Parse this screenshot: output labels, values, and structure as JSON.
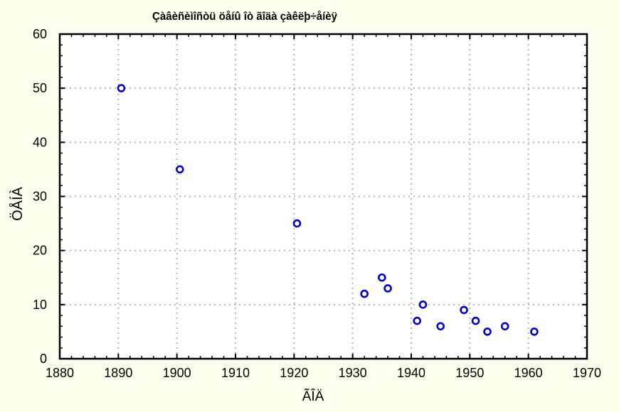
{
  "colors": {
    "background": "#fffff0",
    "plot_background": "#ffffff",
    "frame": "#000000",
    "grid": "#b4b4b4",
    "marker": "#0000d0"
  },
  "chart_data": {
    "type": "scatter",
    "title": "Çàâèñèìîñòü öåíû îò ãîäà çàêëþ÷åíèÿ",
    "xlabel": "ÃÎÄ",
    "ylabel": "ÖÅÍÀ",
    "xlim": [
      1880,
      1970
    ],
    "ylim": [
      0,
      60
    ],
    "x_ticks": [
      1880,
      1890,
      1900,
      1910,
      1920,
      1930,
      1940,
      1950,
      1960,
      1970
    ],
    "y_ticks": [
      0,
      10,
      20,
      30,
      40,
      50,
      60
    ],
    "grid": true,
    "marker": "open-circle",
    "series": [
      {
        "points": [
          {
            "x": 1890.5,
            "y": 50
          },
          {
            "x": 1900.5,
            "y": 35
          },
          {
            "x": 1920.5,
            "y": 25
          },
          {
            "x": 1932,
            "y": 12
          },
          {
            "x": 1935,
            "y": 15
          },
          {
            "x": 1936,
            "y": 13
          },
          {
            "x": 1941,
            "y": 7
          },
          {
            "x": 1942,
            "y": 10
          },
          {
            "x": 1945,
            "y": 6
          },
          {
            "x": 1949,
            "y": 9
          },
          {
            "x": 1951,
            "y": 7
          },
          {
            "x": 1953,
            "y": 5
          },
          {
            "x": 1956,
            "y": 6
          },
          {
            "x": 1961,
            "y": 5
          }
        ]
      }
    ]
  }
}
